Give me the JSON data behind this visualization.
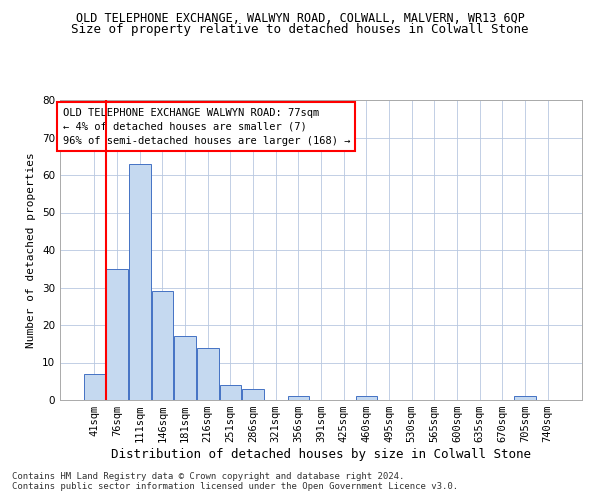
{
  "title": "OLD TELEPHONE EXCHANGE, WALWYN ROAD, COLWALL, MALVERN, WR13 6QP",
  "subtitle": "Size of property relative to detached houses in Colwall Stone",
  "xlabel": "Distribution of detached houses by size in Colwall Stone",
  "ylabel": "Number of detached properties",
  "footnote1": "Contains HM Land Registry data © Crown copyright and database right 2024.",
  "footnote2": "Contains public sector information licensed under the Open Government Licence v3.0.",
  "categories": [
    "41sqm",
    "76sqm",
    "111sqm",
    "146sqm",
    "181sqm",
    "216sqm",
    "251sqm",
    "286sqm",
    "321sqm",
    "356sqm",
    "391sqm",
    "425sqm",
    "460sqm",
    "495sqm",
    "530sqm",
    "565sqm",
    "600sqm",
    "635sqm",
    "670sqm",
    "705sqm",
    "740sqm"
  ],
  "values": [
    7,
    35,
    63,
    29,
    17,
    14,
    4,
    3,
    0,
    1,
    0,
    0,
    1,
    0,
    0,
    0,
    0,
    0,
    0,
    1,
    0
  ],
  "bar_color": "#c5d9f0",
  "bar_edge_color": "#4472c4",
  "grid_color": "#b8c8e0",
  "background_color": "#ffffff",
  "annotation_box_text_line1": "OLD TELEPHONE EXCHANGE WALWYN ROAD: 77sqm",
  "annotation_box_text_line2": "← 4% of detached houses are smaller (7)",
  "annotation_box_text_line3": "96% of semi-detached houses are larger (168) →",
  "marker_bin_index": 1,
  "ylim": [
    0,
    80
  ],
  "yticks": [
    0,
    10,
    20,
    30,
    40,
    50,
    60,
    70,
    80
  ],
  "title_fontsize": 8.5,
  "subtitle_fontsize": 9,
  "xlabel_fontsize": 9,
  "ylabel_fontsize": 8,
  "tick_fontsize": 7.5,
  "annotation_fontsize": 7.5,
  "footnote_fontsize": 6.5
}
